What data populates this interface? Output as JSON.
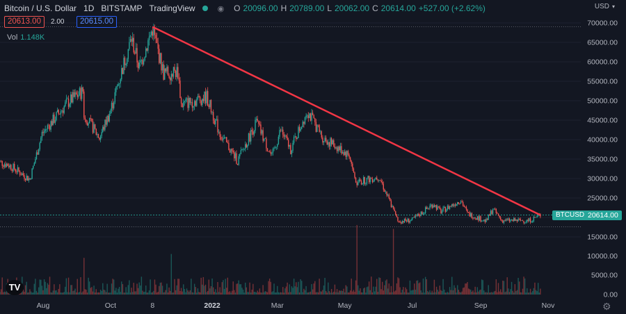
{
  "header": {
    "title": "Bitcoin / U.S. Dollar",
    "interval": "1D",
    "exchange": "BITSTAMP",
    "source": "TradingView",
    "eye_icon": "eye-icon",
    "ohlc": {
      "o_label": "O",
      "o": "20096.00",
      "h_label": "H",
      "h": "20789.00",
      "l_label": "L",
      "l": "20062.00",
      "c_label": "C",
      "c": "20614.00",
      "change": "+527.00 (+2.62%)"
    }
  },
  "prices": {
    "bid": "20613.00",
    "spread": "2.00",
    "ask": "20615.00"
  },
  "volume": {
    "label": "Vol",
    "value": "1.148K"
  },
  "currency": {
    "label": "USD",
    "icon": "chevron-down-icon"
  },
  "logo_text": "TV",
  "last_price_tag": {
    "symbol": "BTCUSD",
    "price": "20614.00"
  },
  "colors": {
    "up": "#26a69a",
    "down": "#ef5350",
    "trend": "#f23645",
    "bg": "#131722",
    "text": "#b2b5be"
  },
  "chart_data": {
    "type": "candlestick",
    "title": "Bitcoin / U.S. Dollar",
    "ylim": [
      14000,
      72000
    ],
    "price_ticks": [
      "70000.00",
      "65000.00",
      "60000.00",
      "55000.00",
      "50000.00",
      "45000.00",
      "40000.00",
      "35000.00",
      "30000.00",
      "25000.00",
      "20000.00",
      "15000.00"
    ],
    "volume_ticks": [
      "10000.00",
      "5000.00",
      "0.00"
    ],
    "x_labels": [
      {
        "label": "Aug",
        "t": "2021-08-01"
      },
      {
        "label": "Oct",
        "t": "2021-10-01"
      },
      {
        "label": "8",
        "t": "2021-11-08"
      },
      {
        "label": "2022",
        "t": "2022-01-01"
      },
      {
        "label": "Mar",
        "t": "2022-03-01"
      },
      {
        "label": "May",
        "t": "2022-05-01"
      },
      {
        "label": "Jul",
        "t": "2022-07-01"
      },
      {
        "label": "Sep",
        "t": "2022-09-01"
      },
      {
        "label": "Nov",
        "t": "2022-11-01"
      }
    ],
    "close_path": [
      [
        "2021-06-20",
        34500
      ],
      [
        "2021-07-01",
        33500
      ],
      [
        "2021-07-20",
        29800
      ],
      [
        "2021-07-31",
        41500
      ],
      [
        "2021-08-23",
        49500
      ],
      [
        "2021-09-06",
        52500
      ],
      [
        "2021-09-07",
        46500
      ],
      [
        "2021-09-21",
        40500
      ],
      [
        "2021-10-01",
        47500
      ],
      [
        "2021-10-15",
        61500
      ],
      [
        "2021-10-20",
        66000
      ],
      [
        "2021-10-27",
        58500
      ],
      [
        "2021-11-08",
        68500
      ],
      [
        "2021-11-18",
        57000
      ],
      [
        "2021-12-01",
        57500
      ],
      [
        "2021-12-04",
        49000
      ],
      [
        "2021-12-27",
        51000
      ],
      [
        "2022-01-08",
        41500
      ],
      [
        "2022-01-24",
        34500
      ],
      [
        "2022-02-10",
        44500
      ],
      [
        "2022-02-24",
        35500
      ],
      [
        "2022-03-04",
        42500
      ],
      [
        "2022-03-13",
        37500
      ],
      [
        "2022-03-28",
        47500
      ],
      [
        "2022-04-11",
        40500
      ],
      [
        "2022-05-05",
        36000
      ],
      [
        "2022-05-11",
        29000
      ],
      [
        "2022-06-01",
        30500
      ],
      [
        "2022-06-13",
        22500
      ],
      [
        "2022-06-18",
        19000
      ],
      [
        "2022-07-01",
        19300
      ],
      [
        "2022-07-20",
        23500
      ],
      [
        "2022-07-27",
        21500
      ],
      [
        "2022-08-14",
        24500
      ],
      [
        "2022-08-20",
        21000
      ],
      [
        "2022-09-06",
        19000
      ],
      [
        "2022-09-12",
        22200
      ],
      [
        "2022-09-20",
        19200
      ],
      [
        "2022-10-15",
        19200
      ],
      [
        "2022-10-25",
        20614
      ]
    ],
    "trendline": [
      [
        "2021-11-08",
        69000
      ],
      [
        "2022-10-25",
        20614
      ]
    ],
    "horizontal_lines": [
      69000,
      20614,
      17600
    ],
    "volume_spikes": [
      [
        "2022-05-12",
        18000
      ],
      [
        "2022-06-14",
        17000
      ],
      [
        "2021-11-25",
        10500
      ],
      [
        "2021-09-07",
        9500
      ]
    ]
  }
}
